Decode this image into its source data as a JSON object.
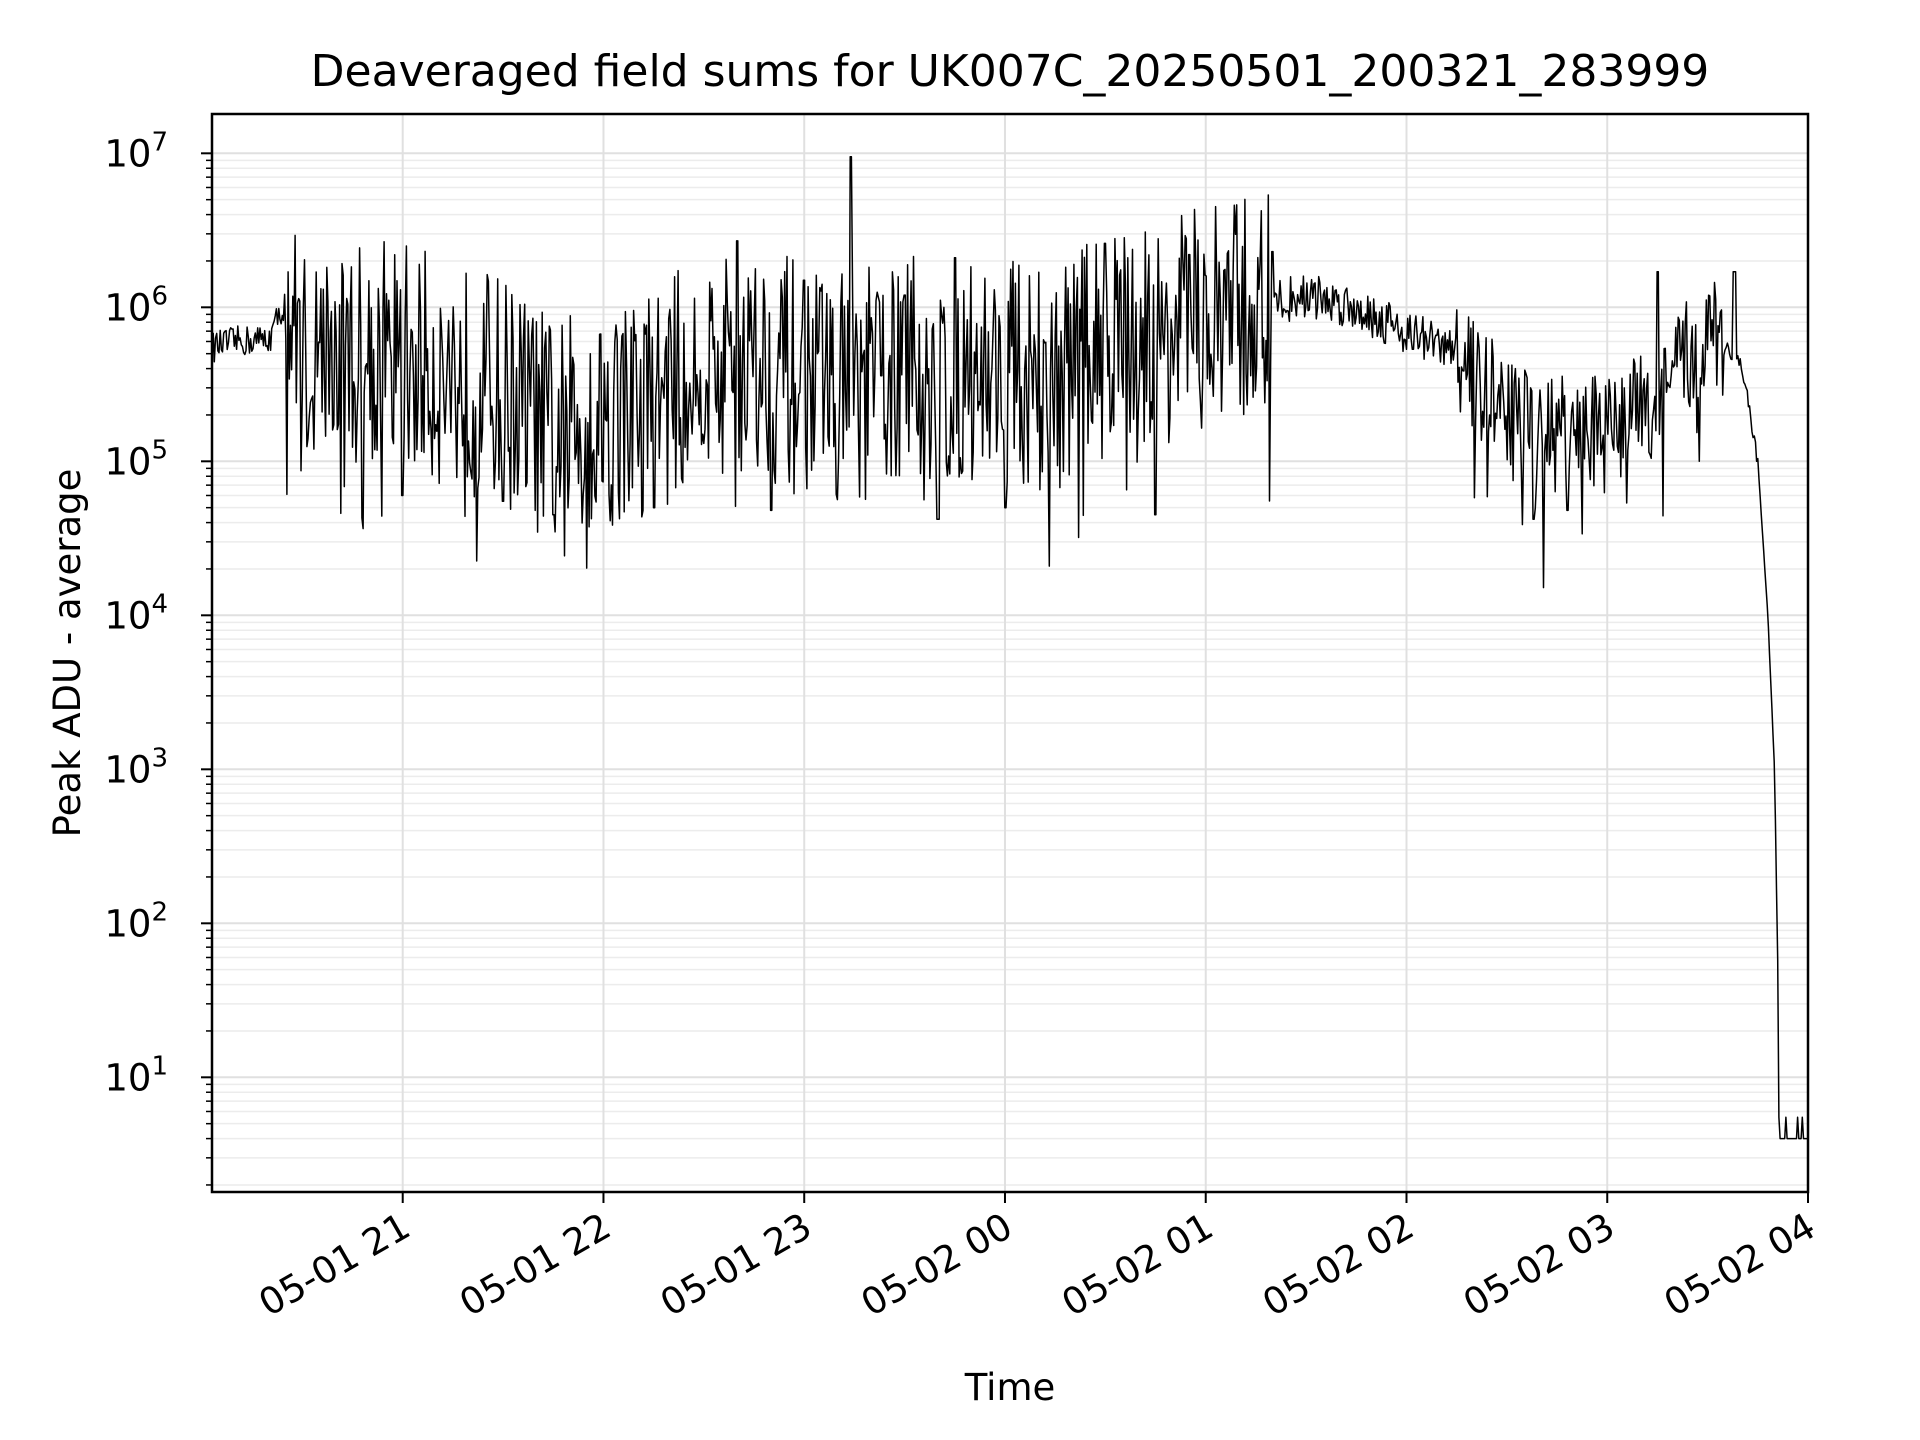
{
  "chart_data": {
    "type": "line",
    "title": "Deaveraged field sums for UK007C_20250501_200321_283999",
    "xlabel": "Time",
    "ylabel": "Peak ADU - average",
    "yscale": "log",
    "ylim": [
      1.8,
      18000000
    ],
    "xlim": [
      "05-01 20:03",
      "05-02 04:00"
    ],
    "grid": true,
    "x_ticks": [
      "05-01 21",
      "05-01 22",
      "05-01 23",
      "05-02 00",
      "05-02 01",
      "05-02 02",
      "05-02 03",
      "05-02 04"
    ],
    "y_ticks": [
      {
        "base": "10",
        "exp": "1",
        "value": 10
      },
      {
        "base": "10",
        "exp": "2",
        "value": 100
      },
      {
        "base": "10",
        "exp": "3",
        "value": 1000
      },
      {
        "base": "10",
        "exp": "4",
        "value": 10000
      },
      {
        "base": "10",
        "exp": "5",
        "value": 100000
      },
      {
        "base": "10",
        "exp": "6",
        "value": 1000000
      },
      {
        "base": "10",
        "exp": "7",
        "value": 10000000
      }
    ],
    "series": [
      {
        "color": "#000000",
        "points": [
          [
            "05-01 20:03",
            550000
          ],
          [
            "05-01 20:10",
            600000
          ],
          [
            "05-01 20:20",
            620000
          ],
          [
            "05-01 20:25",
            1100000
          ],
          [
            "05-01 20:30",
            450000
          ],
          [
            "05-01 20:45",
            500000
          ],
          [
            "05-01 21:00",
            500000
          ],
          [
            "05-01 21:15",
            350000
          ],
          [
            "05-01 21:30",
            300000
          ],
          [
            "05-01 21:45",
            150000
          ],
          [
            "05-01 22:00",
            200000
          ],
          [
            "05-01 22:15",
            250000
          ],
          [
            "05-01 22:30",
            400000
          ],
          [
            "05-01 22:45",
            450000
          ],
          [
            "05-01 23:00",
            350000
          ],
          [
            "05-01 23:15",
            300000
          ],
          [
            "05-01 23:30",
            400000
          ],
          [
            "05-01 23:45",
            350000
          ],
          [
            "05-02 00:00",
            400000
          ],
          [
            "05-02 00:15",
            350000
          ],
          [
            "05-02 00:30",
            600000
          ],
          [
            "05-02 00:45",
            700000
          ],
          [
            "05-02 01:00",
            800000
          ],
          [
            "05-02 01:15",
            1000000
          ],
          [
            "05-02 01:30",
            1200000
          ],
          [
            "05-02 01:45",
            1000000
          ],
          [
            "05-02 02:00",
            700000
          ],
          [
            "05-02 02:15",
            500000
          ],
          [
            "05-02 02:30",
            200000
          ],
          [
            "05-02 02:45",
            150000
          ],
          [
            "05-02 03:00",
            150000
          ],
          [
            "05-02 03:15",
            250000
          ],
          [
            "05-02 03:30",
            700000
          ],
          [
            "05-02 03:40",
            450000
          ],
          [
            "05-02 03:45",
            100000
          ],
          [
            "05-02 03:48",
            10000
          ],
          [
            "05-02 03:50",
            1000
          ],
          [
            "05-02 03:51",
            50
          ],
          [
            "05-02 03:51",
            4
          ],
          [
            "05-02 04:00",
            4
          ]
        ],
        "peaks": [
          [
            "05-01 22:40",
            2700000
          ],
          [
            "05-01 23:00",
            1500000
          ],
          [
            "05-01 23:14",
            9500000
          ],
          [
            "05-01 23:30",
            1200000
          ],
          [
            "05-01 23:45",
            2100000
          ],
          [
            "05-02 00:30",
            2600000
          ],
          [
            "05-02 00:55",
            2200000
          ],
          [
            "05-02 01:20",
            2300000
          ],
          [
            "05-02 03:15",
            1700000
          ],
          [
            "05-02 03:38",
            1700000
          ]
        ],
        "troughs": [
          [
            "05-01 21:00",
            60000
          ],
          [
            "05-01 21:30",
            55000
          ],
          [
            "05-01 21:45",
            45000
          ],
          [
            "05-01 22:15",
            50000
          ],
          [
            "05-01 22:50",
            48000
          ],
          [
            "05-01 23:40",
            42000
          ],
          [
            "05-02 00:00",
            50000
          ],
          [
            "05-02 00:45",
            45000
          ],
          [
            "05-02 02:38",
            42000
          ],
          [
            "05-02 02:48",
            48000
          ]
        ]
      }
    ]
  }
}
